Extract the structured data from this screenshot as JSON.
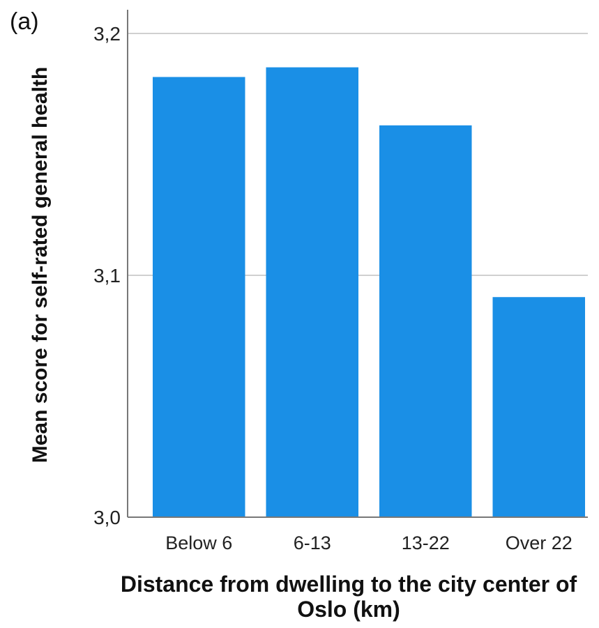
{
  "panel_label": "(a)",
  "chart_data": {
    "type": "bar",
    "title": "",
    "categories": [
      "Below 6",
      "6-13",
      "13-22",
      "Over 22"
    ],
    "values": [
      3.182,
      3.186,
      3.162,
      3.091
    ],
    "xlabel": "Distance from dwelling to the city center of Oslo (km)",
    "ylabel": "Mean score for self-rated general health",
    "ylim": [
      3.0,
      3.2
    ],
    "yticks": [
      "3,0",
      "3,1",
      "3,2"
    ],
    "ytick_values": [
      3.0,
      3.1,
      3.2
    ],
    "grid": "horizontal",
    "bar_color": "#1a8fe6",
    "grid_color": "#d0d0d0",
    "axis_color": "#777777"
  }
}
